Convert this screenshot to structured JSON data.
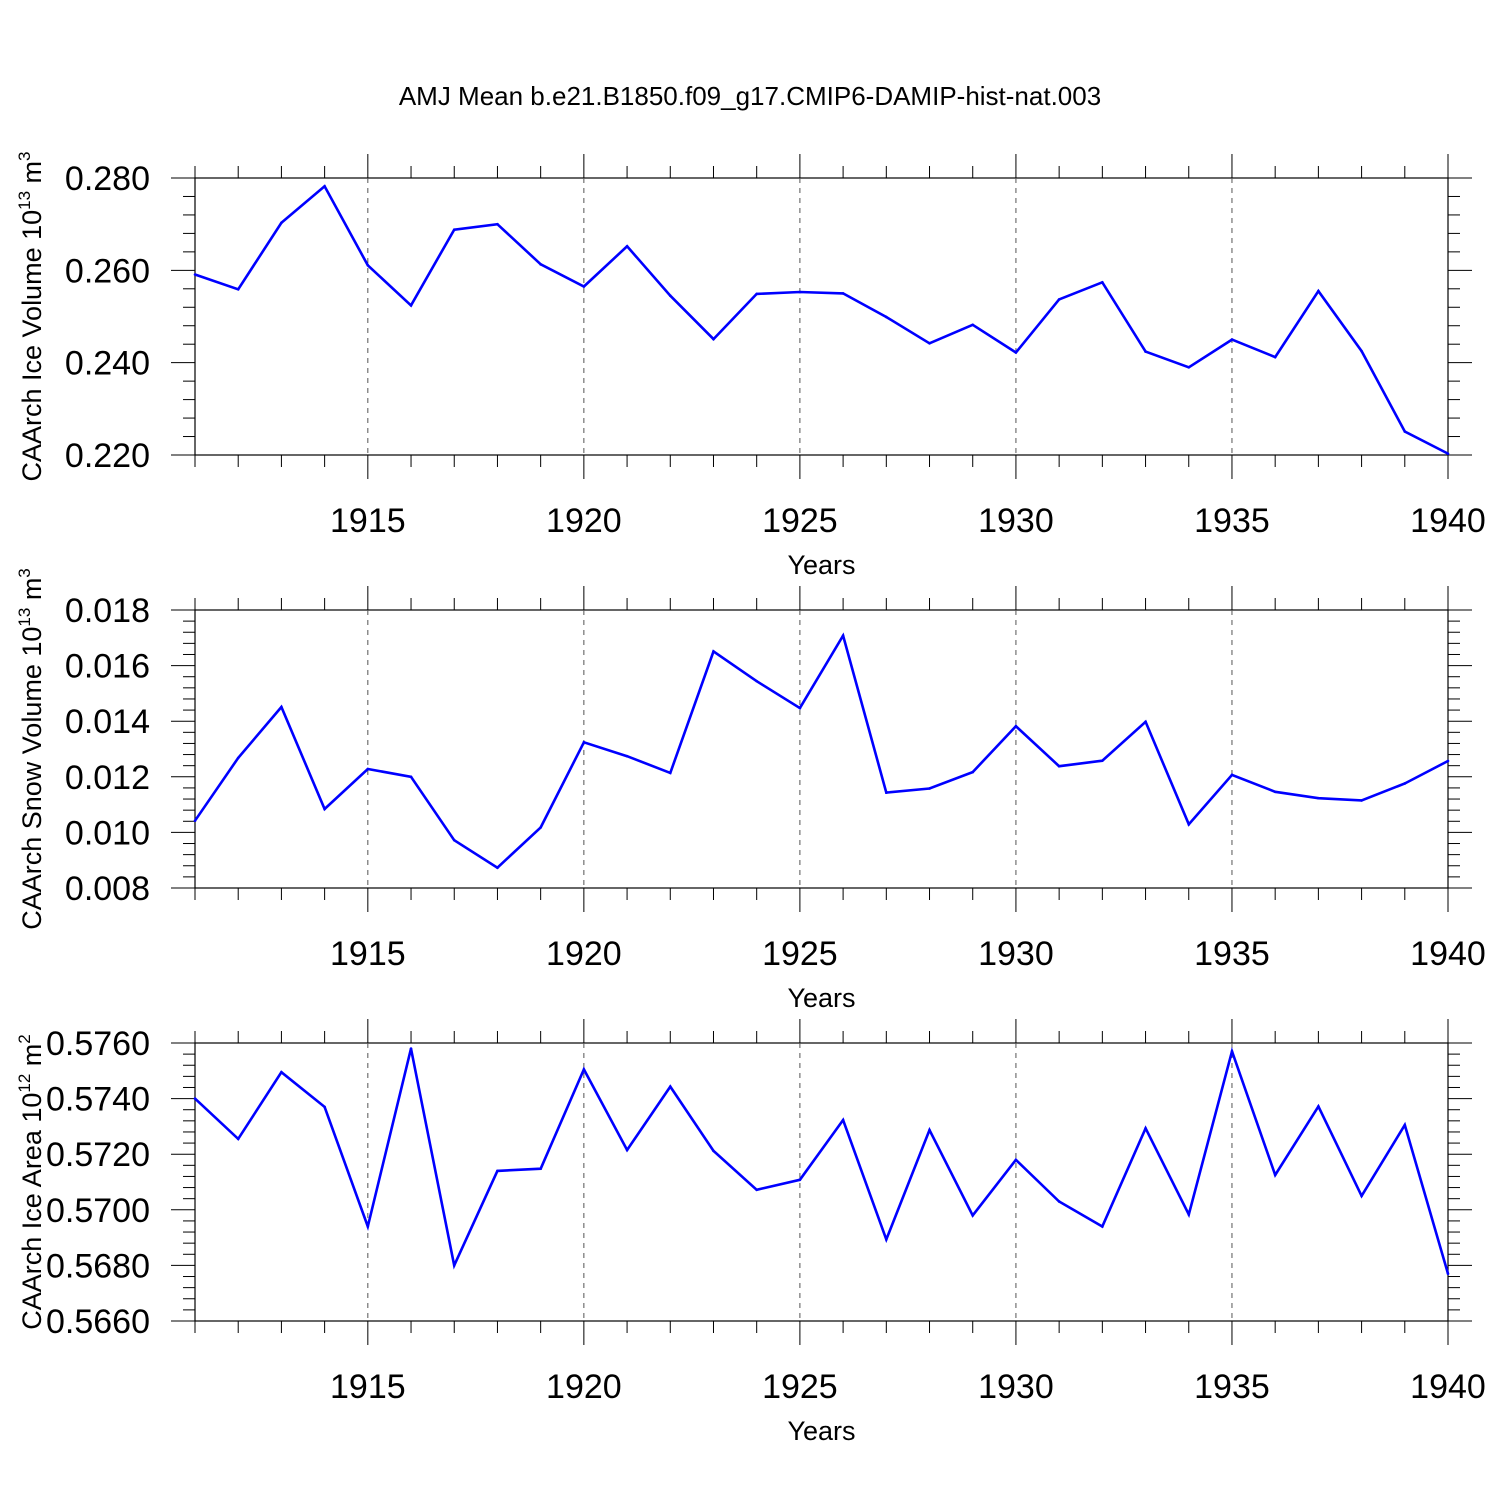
{
  "figure": {
    "title": "AMJ Mean b.e21.B1850.f09_g17.CMIP6-DAMIP-hist-nat.003"
  },
  "chart_data": [
    {
      "type": "line",
      "xlabel": "Years",
      "ylabel": {
        "text": "CAArch Ice Volume 10",
        "exp": "13",
        "unit": " m",
        "unit_exp": "3"
      },
      "xlim": [
        1911,
        1940
      ],
      "ylim": [
        0.22,
        0.28
      ],
      "xticks": [
        1915,
        1920,
        1925,
        1930,
        1935,
        1940
      ],
      "xtick_labels": [
        "1915",
        "1920",
        "1925",
        "1930",
        "1935",
        "1940"
      ],
      "yticks": [
        0.22,
        0.24,
        0.26,
        0.28
      ],
      "ytick_labels": [
        "0.220",
        "0.240",
        "0.260",
        "0.280"
      ],
      "grid": "dashed vertical at major x ticks",
      "line_color": "#0000ff",
      "x": [
        1911,
        1912,
        1913,
        1914,
        1915,
        1916,
        1917,
        1918,
        1919,
        1920,
        1921,
        1922,
        1923,
        1924,
        1925,
        1926,
        1927,
        1928,
        1929,
        1930,
        1931,
        1932,
        1933,
        1934,
        1935,
        1936,
        1937,
        1938,
        1939,
        1940
      ],
      "values": [
        0.2591,
        0.2559,
        0.2703,
        0.2782,
        0.2611,
        0.2524,
        0.2688,
        0.27,
        0.2613,
        0.2565,
        0.2652,
        0.2545,
        0.2451,
        0.2549,
        0.2553,
        0.255,
        0.2499,
        0.2442,
        0.2482,
        0.2422,
        0.2537,
        0.2574,
        0.2424,
        0.239,
        0.245,
        0.2412,
        0.2555,
        0.2425,
        0.2251,
        0.2203
      ]
    },
    {
      "type": "line",
      "xlabel": "Years",
      "ylabel": {
        "text": "CAArch Snow Volume 10",
        "exp": "13",
        "unit": " m",
        "unit_exp": "3"
      },
      "xlim": [
        1911,
        1940
      ],
      "ylim": [
        0.008,
        0.018
      ],
      "xticks": [
        1915,
        1920,
        1925,
        1930,
        1935,
        1940
      ],
      "xtick_labels": [
        "1915",
        "1920",
        "1925",
        "1930",
        "1935",
        "1940"
      ],
      "yticks": [
        0.008,
        0.01,
        0.012,
        0.014,
        0.016,
        0.018
      ],
      "ytick_labels": [
        "0.008",
        "0.010",
        "0.012",
        "0.014",
        "0.016",
        "0.018"
      ],
      "grid": "dashed vertical at major x ticks",
      "line_color": "#0000ff",
      "x": [
        1911,
        1912,
        1913,
        1914,
        1915,
        1916,
        1917,
        1918,
        1919,
        1920,
        1921,
        1922,
        1923,
        1924,
        1925,
        1926,
        1927,
        1928,
        1929,
        1930,
        1931,
        1932,
        1933,
        1934,
        1935,
        1936,
        1937,
        1938,
        1939,
        1940
      ],
      "values": [
        0.01042,
        0.01268,
        0.01451,
        0.01084,
        0.01228,
        0.012,
        0.00972,
        0.00873,
        0.01018,
        0.01324,
        0.01274,
        0.01214,
        0.01651,
        0.01544,
        0.01447,
        0.01708,
        0.01143,
        0.01158,
        0.01217,
        0.01382,
        0.01238,
        0.01258,
        0.01398,
        0.01029,
        0.01207,
        0.01146,
        0.01123,
        0.01115,
        0.01176,
        0.01257
      ]
    },
    {
      "type": "line",
      "xlabel": "Years",
      "ylabel": {
        "text": "CAArch Ice Area 10",
        "exp": "12",
        "unit": " m",
        "unit_exp": "2"
      },
      "xlim": [
        1911,
        1940
      ],
      "ylim": [
        0.566,
        0.576
      ],
      "xticks": [
        1915,
        1920,
        1925,
        1930,
        1935,
        1940
      ],
      "xtick_labels": [
        "1915",
        "1920",
        "1925",
        "1930",
        "1935",
        "1940"
      ],
      "yticks": [
        0.566,
        0.568,
        0.57,
        0.572,
        0.574,
        0.576
      ],
      "ytick_labels": [
        "0.5660",
        "0.5680",
        "0.5700",
        "0.5720",
        "0.5740",
        "0.5760"
      ],
      "grid": "dashed vertical at major x ticks",
      "line_color": "#0000ff",
      "x": [
        1911,
        1912,
        1913,
        1914,
        1915,
        1916,
        1917,
        1918,
        1919,
        1920,
        1921,
        1922,
        1923,
        1924,
        1925,
        1926,
        1927,
        1928,
        1929,
        1930,
        1931,
        1932,
        1933,
        1934,
        1935,
        1936,
        1937,
        1938,
        1939,
        1940
      ],
      "values": [
        0.574,
        0.57255,
        0.57495,
        0.5737,
        0.5694,
        0.5758,
        0.568,
        0.5714,
        0.57148,
        0.57505,
        0.57215,
        0.57443,
        0.57212,
        0.57072,
        0.57108,
        0.57323,
        0.56893,
        0.57287,
        0.5698,
        0.5718,
        0.5703,
        0.5694,
        0.57293,
        0.56983,
        0.5757,
        0.57125,
        0.57372,
        0.5705,
        0.57305,
        0.5677
      ]
    }
  ]
}
